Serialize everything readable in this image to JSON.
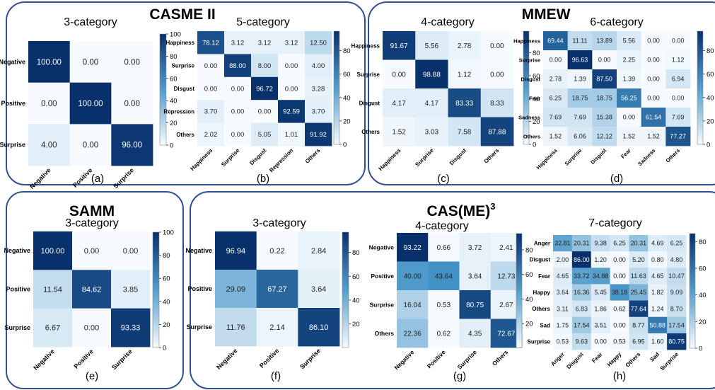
{
  "groups": [
    {
      "title": "CASME II",
      "sup": ""
    },
    {
      "title": "MMEW",
      "sup": ""
    },
    {
      "title": "SAMM",
      "sup": ""
    },
    {
      "title": "CAS(ME)",
      "sup": "3"
    }
  ],
  "colorscale": {
    "low": "#f7fbff",
    "high": "#08306b"
  },
  "chart_data": [
    {
      "type": "heatmap",
      "panel": "(a)",
      "title": "3-category",
      "labels": [
        "Negative",
        "Positive",
        "Surprise"
      ],
      "values": [
        [
          100.0,
          0.0,
          0.0
        ],
        [
          0.0,
          100.0,
          0.0
        ],
        [
          4.0,
          0.0,
          96.0
        ]
      ],
      "colorbar": {
        "ticks": [
          0,
          20,
          40,
          60,
          80,
          100
        ],
        "range": [
          0,
          100
        ]
      }
    },
    {
      "type": "heatmap",
      "panel": "(b)",
      "title": "5-category",
      "labels": [
        "Happiness",
        "Surprise",
        "Disgust",
        "Repression",
        "Others"
      ],
      "values": [
        [
          78.12,
          3.12,
          3.12,
          3.12,
          12.5
        ],
        [
          0.0,
          88.0,
          8.0,
          0.0,
          4.0
        ],
        [
          0.0,
          0.0,
          96.72,
          0.0,
          3.28
        ],
        [
          3.7,
          0.0,
          0.0,
          92.59,
          3.7
        ],
        [
          2.02,
          0.0,
          5.05,
          1.01,
          91.92
        ]
      ],
      "colorbar": {
        "ticks": [
          0,
          20,
          40,
          60,
          80
        ],
        "range": [
          0,
          96.72
        ]
      }
    },
    {
      "type": "heatmap",
      "panel": "(c)",
      "title": "4-category",
      "labels": [
        "Happiness",
        "Surprise",
        "Disgust",
        "Others"
      ],
      "values": [
        [
          91.67,
          5.56,
          2.78,
          0.0
        ],
        [
          0.0,
          98.88,
          1.12,
          0.0
        ],
        [
          4.17,
          4.17,
          83.33,
          8.33
        ],
        [
          1.52,
          3.03,
          7.58,
          87.88
        ]
      ],
      "colorbar": {
        "ticks": [
          0,
          20,
          40,
          60,
          80
        ],
        "range": [
          0,
          98.88
        ]
      }
    },
    {
      "type": "heatmap",
      "panel": "(d)",
      "title": "6-category",
      "labels": [
        "Happiness",
        "Surprise",
        "Disgust",
        "Fear",
        "Sadness",
        "Others"
      ],
      "values": [
        [
          69.44,
          11.11,
          13.89,
          5.56,
          0.0,
          0.0
        ],
        [
          0.0,
          96.63,
          0.0,
          2.25,
          0.0,
          1.12
        ],
        [
          2.78,
          1.39,
          87.5,
          1.39,
          0.0,
          6.94
        ],
        [
          6.25,
          18.75,
          18.75,
          56.25,
          0.0,
          0.0
        ],
        [
          7.69,
          7.69,
          15.38,
          0.0,
          61.54,
          7.69
        ],
        [
          1.52,
          6.06,
          12.12,
          1.52,
          1.52,
          77.27
        ]
      ],
      "colorbar": {
        "ticks": [
          0,
          20,
          40,
          60,
          80
        ],
        "range": [
          0,
          96.63
        ]
      }
    },
    {
      "type": "heatmap",
      "panel": "(e)",
      "title": "3-category",
      "labels": [
        "Negative",
        "Positive",
        "Surprise"
      ],
      "values": [
        [
          100.0,
          0.0,
          0.0
        ],
        [
          11.54,
          84.62,
          3.85
        ],
        [
          6.67,
          0.0,
          93.33
        ]
      ],
      "colorbar": {
        "ticks": [
          0,
          20,
          40,
          60,
          80,
          100
        ],
        "range": [
          0,
          100
        ]
      }
    },
    {
      "type": "heatmap",
      "panel": "(f)",
      "title": "3-category",
      "labels": [
        "Negative",
        "Positive",
        "Surprise"
      ],
      "values": [
        [
          96.94,
          0.22,
          2.84
        ],
        [
          29.09,
          67.27,
          3.64
        ],
        [
          11.76,
          2.14,
          86.1
        ]
      ],
      "colorbar": {
        "ticks": [
          20,
          40,
          60,
          80
        ],
        "range": [
          0.22,
          96.94
        ]
      }
    },
    {
      "type": "heatmap",
      "panel": "(g)",
      "title": "4-category",
      "labels": [
        "Negative",
        "Positive",
        "Surprise",
        "Others"
      ],
      "values": [
        [
          93.22,
          0.66,
          3.72,
          2.41
        ],
        [
          40.0,
          43.64,
          3.64,
          12.73
        ],
        [
          16.04,
          0.53,
          80.75,
          2.67
        ],
        [
          22.36,
          0.62,
          4.35,
          72.67
        ]
      ],
      "colorbar": {
        "ticks": [
          20,
          40,
          60,
          80
        ],
        "range": [
          0.53,
          93.22
        ]
      }
    },
    {
      "type": "heatmap",
      "panel": "(h)",
      "title": "7-category",
      "labels": [
        "Anger",
        "Disgust",
        "Fear",
        "Happy",
        "Others",
        "Sad",
        "Surprise"
      ],
      "values": [
        [
          32.81,
          20.31,
          9.38,
          6.25,
          20.31,
          4.69,
          6.25
        ],
        [
          2.0,
          86.0,
          1.2,
          0.0,
          5.2,
          0.8,
          4.8
        ],
        [
          4.65,
          33.72,
          34.88,
          0.0,
          11.63,
          4.65,
          10.47
        ],
        [
          3.64,
          16.36,
          5.45,
          38.18,
          25.45,
          1.82,
          9.09
        ],
        [
          3.11,
          6.83,
          1.86,
          0.62,
          77.64,
          1.24,
          8.7
        ],
        [
          1.75,
          17.54,
          3.51,
          0.0,
          8.77,
          50.88,
          17.54
        ],
        [
          0.53,
          9.63,
          0.0,
          0.53,
          6.95,
          1.6,
          80.75
        ]
      ],
      "colorbar": {
        "ticks": [
          0,
          20,
          40,
          60,
          80
        ],
        "range": [
          0,
          86.0
        ]
      }
    }
  ]
}
